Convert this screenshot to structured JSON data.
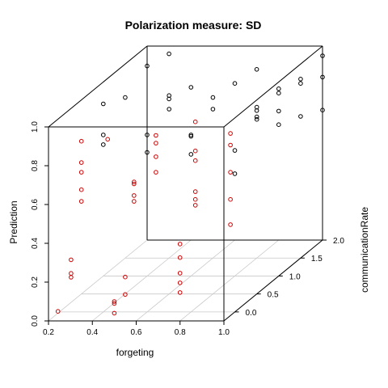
{
  "chart_data": {
    "type": "scatter",
    "title": "Polarization measure: SD",
    "xlabel": "forgeting",
    "ylabel": "communicationRate",
    "zlabel": "Prediction",
    "xlim": [
      0.2,
      1.0
    ],
    "ylim": [
      -0.25,
      2.0
    ],
    "zlim": [
      0.0,
      1.0
    ],
    "x_ticks": [
      "0.2",
      "0.4",
      "0.6",
      "0.8",
      "1.0"
    ],
    "y_ticks": [
      "0.0",
      "0.5",
      "1.0",
      "1.5",
      "2.0"
    ],
    "z_ticks": [
      "0.0",
      "0.2",
      "0.4",
      "0.6",
      "0.8",
      "1.0"
    ],
    "grid": "floor",
    "colors": {
      "front": "#cc0000",
      "back": "#000000"
    },
    "points": [
      {
        "x": 0.233,
        "y": -0.2,
        "z": 0.04,
        "color": "red"
      },
      {
        "x": 0.233,
        "y": 0.1,
        "z": 0.25,
        "color": "red"
      },
      {
        "x": 0.233,
        "y": 0.1,
        "z": 0.18,
        "color": "red"
      },
      {
        "x": 0.233,
        "y": 0.1,
        "z": 0.16,
        "color": "red"
      },
      {
        "x": 0.5,
        "y": -0.25,
        "z": 0.04,
        "color": "red"
      },
      {
        "x": 0.5,
        "y": -0.25,
        "z": 0.09,
        "color": "red"
      },
      {
        "x": 0.5,
        "y": -0.25,
        "z": 0.1,
        "color": "red"
      },
      {
        "x": 0.5,
        "y": 0.0,
        "z": 0.09,
        "color": "red"
      },
      {
        "x": 0.5,
        "y": 0.0,
        "z": 0.18,
        "color": "red"
      },
      {
        "x": 0.75,
        "y": 0.0,
        "z": 0.1,
        "color": "red"
      },
      {
        "x": 0.75,
        "y": 0.0,
        "z": 0.15,
        "color": "red"
      },
      {
        "x": 0.75,
        "y": 0.0,
        "z": 0.2,
        "color": "red"
      },
      {
        "x": 0.75,
        "y": 0.0,
        "z": 0.28,
        "color": "red"
      },
      {
        "x": 0.75,
        "y": 0.0,
        "z": 0.35,
        "color": "red"
      },
      {
        "x": 0.3,
        "y": 0.0,
        "z": 0.57,
        "color": "red"
      },
      {
        "x": 0.3,
        "y": 0.0,
        "z": 0.63,
        "color": "red"
      },
      {
        "x": 0.3,
        "y": 0.0,
        "z": 0.72,
        "color": "red"
      },
      {
        "x": 0.3,
        "y": 0.0,
        "z": 0.77,
        "color": "red"
      },
      {
        "x": 0.3,
        "y": 0.0,
        "z": 0.88,
        "color": "red"
      },
      {
        "x": 0.42,
        "y": 0.0,
        "z": 0.89,
        "color": "red"
      },
      {
        "x": 0.54,
        "y": 0.0,
        "z": 0.57,
        "color": "red"
      },
      {
        "x": 0.54,
        "y": 0.0,
        "z": 0.6,
        "color": "red"
      },
      {
        "x": 0.54,
        "y": 0.0,
        "z": 0.66,
        "color": "red"
      },
      {
        "x": 0.54,
        "y": 0.0,
        "z": 0.67,
        "color": "red"
      },
      {
        "x": 0.64,
        "y": 0.0,
        "z": 0.72,
        "color": "red"
      },
      {
        "x": 0.64,
        "y": 0.0,
        "z": 0.8,
        "color": "red"
      },
      {
        "x": 0.64,
        "y": 0.0,
        "z": 0.87,
        "color": "red"
      },
      {
        "x": 0.64,
        "y": 0.0,
        "z": 0.91,
        "color": "red"
      },
      {
        "x": 0.82,
        "y": 0.0,
        "z": 0.55,
        "color": "red"
      },
      {
        "x": 0.82,
        "y": 0.0,
        "z": 0.58,
        "color": "red"
      },
      {
        "x": 0.82,
        "y": 0.0,
        "z": 0.62,
        "color": "red"
      },
      {
        "x": 0.82,
        "y": 0.0,
        "z": 0.78,
        "color": "red"
      },
      {
        "x": 0.82,
        "y": 0.0,
        "z": 0.83,
        "color": "red"
      },
      {
        "x": 0.82,
        "y": 0.0,
        "z": 0.98,
        "color": "red"
      },
      {
        "x": 0.98,
        "y": 0.0,
        "z": 0.45,
        "color": "red"
      },
      {
        "x": 0.98,
        "y": 0.0,
        "z": 0.58,
        "color": "red"
      },
      {
        "x": 0.98,
        "y": 0.0,
        "z": 0.72,
        "color": "red"
      },
      {
        "x": 0.98,
        "y": 0.0,
        "z": 0.86,
        "color": "red"
      },
      {
        "x": 0.98,
        "y": 0.0,
        "z": 0.92,
        "color": "red"
      },
      {
        "x": 0.3,
        "y": 0.5,
        "z": 0.98,
        "color": "black"
      },
      {
        "x": 0.3,
        "y": 0.5,
        "z": 0.77,
        "color": "black"
      },
      {
        "x": 0.3,
        "y": 0.5,
        "z": 0.82,
        "color": "black"
      },
      {
        "x": 0.3,
        "y": 1.0,
        "z": 0.92,
        "color": "black"
      },
      {
        "x": 0.3,
        "y": 1.5,
        "z": 0.99,
        "color": "black"
      },
      {
        "x": 0.3,
        "y": 2.0,
        "z": 0.96,
        "color": "black"
      },
      {
        "x": 0.5,
        "y": 0.5,
        "z": 0.73,
        "color": "black"
      },
      {
        "x": 0.5,
        "y": 0.5,
        "z": 0.82,
        "color": "black"
      },
      {
        "x": 0.5,
        "y": 1.0,
        "z": 0.86,
        "color": "black"
      },
      {
        "x": 0.5,
        "y": 1.0,
        "z": 0.93,
        "color": "black"
      },
      {
        "x": 0.5,
        "y": 1.5,
        "z": 0.88,
        "color": "black"
      },
      {
        "x": 0.7,
        "y": 0.5,
        "z": 0.72,
        "color": "black"
      },
      {
        "x": 0.7,
        "y": 0.5,
        "z": 0.82,
        "color": "black"
      },
      {
        "x": 0.7,
        "y": 1.0,
        "z": 0.86,
        "color": "black"
      },
      {
        "x": 0.7,
        "y": 1.0,
        "z": 0.92,
        "color": "black"
      },
      {
        "x": 0.7,
        "y": 1.5,
        "z": 0.9,
        "color": "black"
      },
      {
        "x": 0.7,
        "y": 2.0,
        "z": 0.88,
        "color": "black"
      },
      {
        "x": 0.9,
        "y": 0.5,
        "z": 0.62,
        "color": "black"
      },
      {
        "x": 0.9,
        "y": 0.5,
        "z": 0.74,
        "color": "black"
      },
      {
        "x": 0.9,
        "y": 1.0,
        "z": 0.82,
        "color": "black"
      },
      {
        "x": 0.9,
        "y": 1.0,
        "z": 0.87,
        "color": "black"
      },
      {
        "x": 0.9,
        "y": 1.5,
        "z": 0.85,
        "color": "black"
      },
      {
        "x": 0.9,
        "y": 2.0,
        "z": 0.83,
        "color": "black"
      },
      {
        "x": 1.0,
        "y": 0.5,
        "z": 0.9,
        "color": "black"
      },
      {
        "x": 1.0,
        "y": 1.0,
        "z": 0.85,
        "color": "black"
      },
      {
        "x": 1.0,
        "y": 1.0,
        "z": 0.78,
        "color": "black"
      },
      {
        "x": 1.0,
        "y": 1.5,
        "z": 0.9,
        "color": "black"
      },
      {
        "x": 1.0,
        "y": 1.5,
        "z": 0.73,
        "color": "black"
      },
      {
        "x": 1.0,
        "y": 2.0,
        "z": 0.95,
        "color": "black"
      },
      {
        "x": 1.0,
        "y": 2.0,
        "z": 0.84,
        "color": "black"
      },
      {
        "x": 1.0,
        "y": 2.0,
        "z": 0.67,
        "color": "black"
      },
      {
        "x": 0.8,
        "y": 1.5,
        "z": 0.76,
        "color": "black"
      },
      {
        "x": 0.6,
        "y": 1.0,
        "z": 0.72,
        "color": "black"
      },
      {
        "x": 0.4,
        "y": 1.5,
        "z": 0.82,
        "color": "black"
      },
      {
        "x": 0.8,
        "y": 2.0,
        "z": 0.78,
        "color": "black"
      }
    ]
  }
}
